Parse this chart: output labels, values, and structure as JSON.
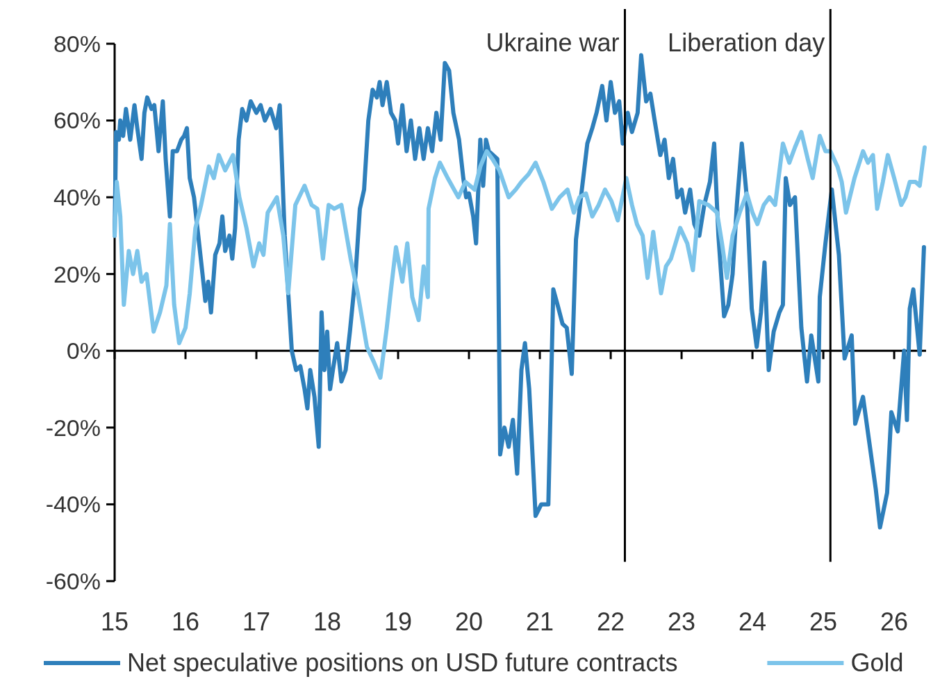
{
  "chart_data": {
    "type": "line",
    "xlim": [
      15,
      26.45
    ],
    "xticks": [
      15,
      16,
      17,
      18,
      19,
      20,
      21,
      22,
      23,
      24,
      25,
      26
    ],
    "ylim": [
      -60,
      80
    ],
    "yticks": [
      {
        "value": -60,
        "label": "-60%"
      },
      {
        "value": -40,
        "label": "-40%"
      },
      {
        "value": -20,
        "label": "-20%"
      },
      {
        "value": 0,
        "label": "0%"
      },
      {
        "value": 20,
        "label": "20%"
      },
      {
        "value": 40,
        "label": "40%"
      },
      {
        "value": 60,
        "label": "60%"
      },
      {
        "value": 80,
        "label": "80%"
      }
    ],
    "legend": "bottom",
    "marker": "none",
    "line_style": "solid",
    "ref_lines": [
      {
        "axis": "x",
        "value": 22.2,
        "label": "Ukraine war",
        "color": "#000000"
      },
      {
        "axis": "x",
        "value": 25.1,
        "label": "Liberation day",
        "color": "#000000"
      }
    ],
    "series": [
      {
        "name": "Net speculative positions on USD future contracts",
        "color": "#2e7fbb",
        "x": [
          15.0,
          15.02,
          15.06,
          15.08,
          15.12,
          15.16,
          15.22,
          15.28,
          15.32,
          15.38,
          15.42,
          15.46,
          15.52,
          15.56,
          15.62,
          15.68,
          15.72,
          15.78,
          15.82,
          15.88,
          15.94,
          15.98,
          16.02,
          16.06,
          16.12,
          16.18,
          16.24,
          16.28,
          16.32,
          16.36,
          16.42,
          16.48,
          16.52,
          16.56,
          16.62,
          16.66,
          16.7,
          16.75,
          16.8,
          16.86,
          16.92,
          17.0,
          17.06,
          17.12,
          17.2,
          17.28,
          17.33,
          17.4,
          17.46,
          17.5,
          17.56,
          17.62,
          17.68,
          17.72,
          17.76,
          17.82,
          17.88,
          17.92,
          17.96,
          18.0,
          18.04,
          18.08,
          18.14,
          18.2,
          18.26,
          18.32,
          18.4,
          18.46,
          18.52,
          18.58,
          18.64,
          18.7,
          18.74,
          18.78,
          18.84,
          18.9,
          18.96,
          19.0,
          19.06,
          19.12,
          19.18,
          19.24,
          19.3,
          19.36,
          19.42,
          19.48,
          19.54,
          19.6,
          19.66,
          19.72,
          19.78,
          19.86,
          19.92,
          19.96,
          20.0,
          20.06,
          20.1,
          20.16,
          20.2,
          20.24,
          20.28,
          20.4,
          20.44,
          20.5,
          20.56,
          20.62,
          20.68,
          20.74,
          20.79,
          20.85,
          20.94,
          21.02,
          21.12,
          21.19,
          21.25,
          21.32,
          21.38,
          21.45,
          21.51,
          21.58,
          21.67,
          21.74,
          21.8,
          21.88,
          21.94,
          22.0,
          22.06,
          22.12,
          22.17,
          22.24,
          22.3,
          22.38,
          22.43,
          22.5,
          22.56,
          22.62,
          22.7,
          22.76,
          22.82,
          22.88,
          22.94,
          23.0,
          23.05,
          23.12,
          23.18,
          23.25,
          23.32,
          23.4,
          23.46,
          23.52,
          23.6,
          23.66,
          23.72,
          23.78,
          23.85,
          23.92,
          23.99,
          24.06,
          24.12,
          24.17,
          24.23,
          24.3,
          24.38,
          24.43,
          24.47,
          24.53,
          24.6,
          24.69,
          24.77,
          24.83,
          24.93,
          24.95,
          25.03,
          25.12,
          25.22,
          25.3,
          25.4,
          25.45,
          25.56,
          25.65,
          25.74,
          25.8,
          25.9,
          25.96,
          26.05,
          26.14,
          26.18,
          26.22,
          26.27,
          26.36,
          26.42
        ],
        "values": [
          30,
          57,
          55,
          60,
          56,
          63,
          55,
          64,
          58,
          50,
          62,
          66,
          63,
          64,
          52,
          65,
          50,
          35,
          52,
          52,
          55,
          56,
          58,
          45,
          40,
          30,
          20,
          13,
          18,
          10,
          25,
          28,
          35,
          26,
          30,
          24,
          32,
          55,
          63,
          60,
          65,
          62,
          64,
          60,
          63,
          58,
          64,
          30,
          12,
          0,
          -5,
          -4,
          -10,
          -15,
          -5,
          -12,
          -25,
          10,
          -5,
          5,
          -10,
          -5,
          2,
          -8,
          -5,
          5,
          20,
          37,
          42,
          60,
          68,
          66,
          70,
          64,
          70,
          62,
          60,
          54,
          64,
          52,
          60,
          50,
          58,
          50,
          58,
          52,
          62,
          55,
          75,
          73,
          62,
          55,
          45,
          40,
          41,
          35,
          28,
          55,
          43,
          55,
          52,
          50,
          -27,
          -20,
          -25,
          -18,
          -32,
          -5,
          2,
          -10,
          -43,
          -40,
          -40,
          16,
          12,
          7,
          6,
          -6,
          29,
          40,
          54,
          58,
          62,
          69,
          60,
          70,
          62,
          65,
          54,
          62,
          57,
          62,
          77,
          65,
          67,
          60,
          51,
          55,
          45,
          50,
          40,
          42,
          36,
          42,
          33,
          30,
          38,
          44,
          54,
          30,
          9,
          12,
          20,
          38,
          54,
          40,
          11,
          1,
          10,
          23,
          -5,
          5,
          10,
          12,
          45,
          38,
          40,
          6,
          -8,
          4,
          -8,
          14,
          28,
          42,
          25,
          -2,
          4,
          -19,
          -12,
          -24,
          -36,
          -46,
          -37,
          -16,
          -21,
          0,
          -18,
          11,
          16,
          -1,
          27
        ]
      },
      {
        "name": "Gold",
        "color": "#7cc4ea",
        "x": [
          15.0,
          15.03,
          15.08,
          15.13,
          15.2,
          15.26,
          15.32,
          15.38,
          15.45,
          15.55,
          15.64,
          15.73,
          15.78,
          15.84,
          15.91,
          16.0,
          16.06,
          16.14,
          16.22,
          16.33,
          16.4,
          16.47,
          16.56,
          16.67,
          16.76,
          16.86,
          16.96,
          17.04,
          17.1,
          17.16,
          17.29,
          17.38,
          17.45,
          17.55,
          17.68,
          17.78,
          17.86,
          17.94,
          18.02,
          18.1,
          18.2,
          18.33,
          18.43,
          18.56,
          18.66,
          18.75,
          18.84,
          18.9,
          18.97,
          19.06,
          19.13,
          19.2,
          19.29,
          19.36,
          19.42,
          19.43,
          19.52,
          19.59,
          19.7,
          19.85,
          19.95,
          20.08,
          20.16,
          20.25,
          20.33,
          20.43,
          20.56,
          20.66,
          20.74,
          20.84,
          20.94,
          21.05,
          21.17,
          21.28,
          21.39,
          21.48,
          21.56,
          21.65,
          21.74,
          21.83,
          21.92,
          22.01,
          22.1,
          22.22,
          22.3,
          22.37,
          22.45,
          22.52,
          22.6,
          22.71,
          22.78,
          22.85,
          22.98,
          23.08,
          23.16,
          23.25,
          23.38,
          23.5,
          23.57,
          23.64,
          23.72,
          23.82,
          23.92,
          24.0,
          24.07,
          24.16,
          24.24,
          24.32,
          24.43,
          24.52,
          24.6,
          24.69,
          24.78,
          24.85,
          24.95,
          25.03,
          25.1,
          25.2,
          25.26,
          25.32,
          25.44,
          25.56,
          25.63,
          25.7,
          25.76,
          25.84,
          25.91,
          26.0,
          26.1,
          26.16,
          26.22,
          26.3,
          26.36,
          26.43
        ],
        "values": [
          30,
          44,
          35,
          12,
          26,
          20,
          26,
          18,
          20,
          5,
          10,
          17,
          33,
          12,
          2,
          6,
          15,
          32,
          38,
          48,
          45,
          51,
          47,
          51,
          40,
          32,
          22,
          28,
          25,
          36,
          40,
          30,
          15,
          38,
          43,
          38,
          37,
          24,
          38,
          37,
          38,
          24,
          15,
          1,
          -3,
          -7,
          6,
          16,
          27,
          18,
          28,
          14,
          8,
          22,
          14,
          37,
          45,
          49,
          45,
          40,
          44,
          42,
          48,
          52,
          50,
          47,
          40,
          42,
          44,
          46,
          49,
          44,
          37,
          40,
          42,
          36,
          40,
          41,
          35,
          38,
          42,
          39,
          34,
          45,
          38,
          33,
          30,
          19,
          31,
          15,
          22,
          24,
          32,
          28,
          21,
          39,
          38,
          36,
          28,
          19,
          30,
          36,
          41,
          36,
          33,
          38,
          40,
          38,
          54,
          49,
          53,
          57,
          50,
          45,
          56,
          52,
          52,
          48,
          44,
          36,
          45,
          52,
          49,
          51,
          37,
          44,
          51,
          45,
          38,
          40,
          44,
          44,
          43,
          53
        ]
      }
    ]
  }
}
